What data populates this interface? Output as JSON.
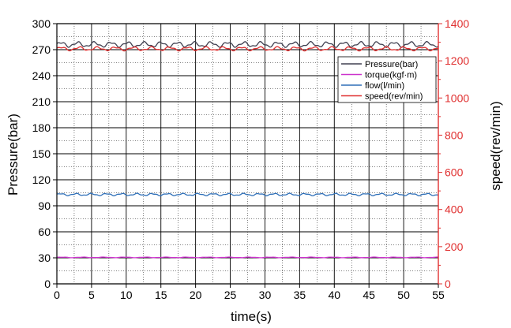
{
  "chart_data": {
    "type": "line",
    "title": "",
    "xlabel": "time(s)",
    "ylabel_left": "Pressure(bar)",
    "ylabel_right": "speed(rev/min)",
    "xlim": [
      0,
      55
    ],
    "ylim_left": [
      0,
      300
    ],
    "ylim_right": [
      0,
      1400
    ],
    "xticks": [
      "0",
      "5",
      "10",
      "15",
      "20",
      "25",
      "30",
      "35",
      "40",
      "45",
      "50",
      "55"
    ],
    "yticks_left": [
      "0",
      "30",
      "60",
      "90",
      "120",
      "150",
      "180",
      "210",
      "240",
      "270",
      "300"
    ],
    "yticks_right": [
      "0",
      "200",
      "400",
      "600",
      "800",
      "1000",
      "1200",
      "1400"
    ],
    "grid": true,
    "legend_position": "top-right",
    "colors": {
      "right_axis": "#e03030",
      "grid": "#000000"
    },
    "series": [
      {
        "name": "Pressure(bar)",
        "axis": "left",
        "color": "#404050",
        "base": 276,
        "amp": 3.5,
        "period": 2.4
      },
      {
        "name": "torque(kgf·m)",
        "axis": "left",
        "color": "#cc33cc",
        "base": 30.5,
        "amp": 0.4,
        "period": 3.0
      },
      {
        "name": "flow(l/min)",
        "axis": "left",
        "color": "#2e6fb8",
        "base": 103,
        "amp": 1.5,
        "period": 2.2
      },
      {
        "name": "speed(rev/min)",
        "axis": "right",
        "color": "#e03030",
        "base": 1265,
        "amp": 12,
        "period": 2.6
      }
    ]
  }
}
